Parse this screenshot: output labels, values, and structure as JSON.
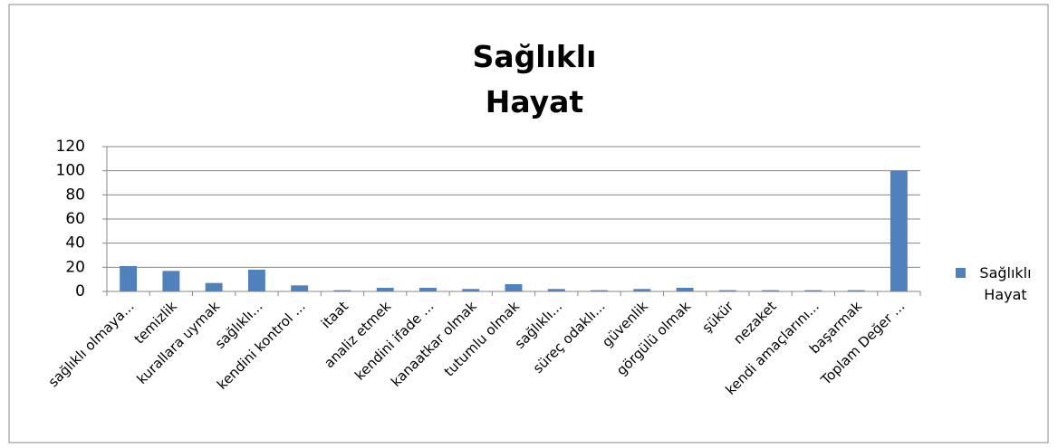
{
  "chart_data": {
    "type": "bar",
    "title": "Sağlıklı Hayat",
    "categories": [
      "sağlıklı olmaya...",
      "temizlik",
      "kurallara uymak",
      "sağlıklı...",
      "kendini kontrol ...",
      "itaat",
      "analiz etmek",
      "kendini ifade ...",
      "kanaatkar olmak",
      "tutumlu olmak",
      "sağlıklı...",
      "süreç odaklı...",
      "güvenlik",
      "görgülü olmak",
      "şükür",
      "nezaket",
      "kendi amaçlarını...",
      "başarmak",
      "Toplam Değer ..."
    ],
    "series": [
      {
        "name": "Sağlıklı Hayat",
        "color": "#4f81bd",
        "values": [
          21,
          17,
          7,
          18,
          5,
          1,
          3,
          3,
          2,
          6,
          2,
          1,
          2,
          3,
          1,
          1,
          1,
          1,
          100
        ]
      }
    ],
    "ylim": [
      0,
      120
    ],
    "yticks": [
      0,
      20,
      40,
      60,
      80,
      100,
      120
    ],
    "grid": true,
    "legend": "right"
  }
}
